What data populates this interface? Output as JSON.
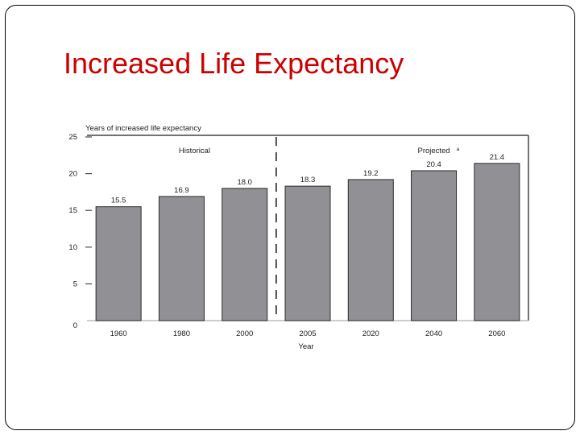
{
  "slide": {
    "title": "Increased Life Expectancy"
  },
  "chart_data": {
    "type": "bar",
    "ylabel": "Years of increased life expectancy",
    "xlabel": "Year",
    "categories": [
      "1960",
      "1980",
      "2000",
      "2005",
      "2020",
      "2040",
      "2060"
    ],
    "values": [
      15.5,
      16.9,
      18.0,
      18.3,
      19.2,
      20.4,
      21.4
    ],
    "value_labels": [
      "15.5",
      "16.9",
      "18.0",
      "18.3",
      "19.2",
      "20.4",
      "21.4"
    ],
    "ylim": [
      0,
      25
    ],
    "yticks": [
      0,
      5,
      10,
      15,
      20,
      25
    ],
    "annotations": {
      "historical": "Historical",
      "projected": "Projected",
      "projected_marker": "a"
    },
    "divider_after_category": "2000",
    "grid": false,
    "colors": {
      "bar": "#919195",
      "bar_edge": "#2b2b2b",
      "axis": "#444444"
    }
  }
}
